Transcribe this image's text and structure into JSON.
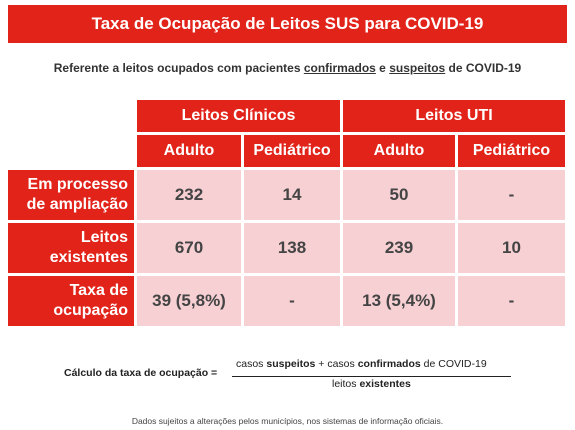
{
  "title": "Taxa de Ocupação de Leitos SUS para COVID-19",
  "subtitle": {
    "part1": "Referente a leitos ocupados com pacientes ",
    "confirmados": "confirmados",
    "part2": " e ",
    "suspeitos": "suspeitos",
    "part3": " de COVID-19"
  },
  "table": {
    "groups": [
      "Leitos Clínicos",
      "Leitos UTI"
    ],
    "subheaders": [
      "Adulto",
      "Pediátrico",
      "Adulto",
      "Pediátrico"
    ],
    "rows": [
      {
        "label_l1": "Em processo",
        "label_l2": "de ampliação",
        "values": [
          "232",
          "14",
          "50",
          "-"
        ]
      },
      {
        "label_l1": "Leitos",
        "label_l2": "existentes",
        "values": [
          "670",
          "138",
          "239",
          "10"
        ]
      },
      {
        "label_l1": "Taxa de",
        "label_l2": "ocupação",
        "values": [
          "39 (5,8%)",
          "-",
          "13 (5,4%)",
          "-"
        ]
      }
    ]
  },
  "formula": {
    "label": "Cálculo da taxa de ocupação =",
    "num_a": "casos ",
    "num_b": "suspeitos",
    "num_c": " + casos ",
    "num_d": "confirmados",
    "num_e": " de COVID-19",
    "den_a": "leitos ",
    "den_b": "existentes"
  },
  "footnote": "Dados sujeitos a alterações pelos municípios, nos sistemas de informação oficiais.",
  "colors": {
    "accent": "#e2231a",
    "cell": "#f7d0d3"
  }
}
